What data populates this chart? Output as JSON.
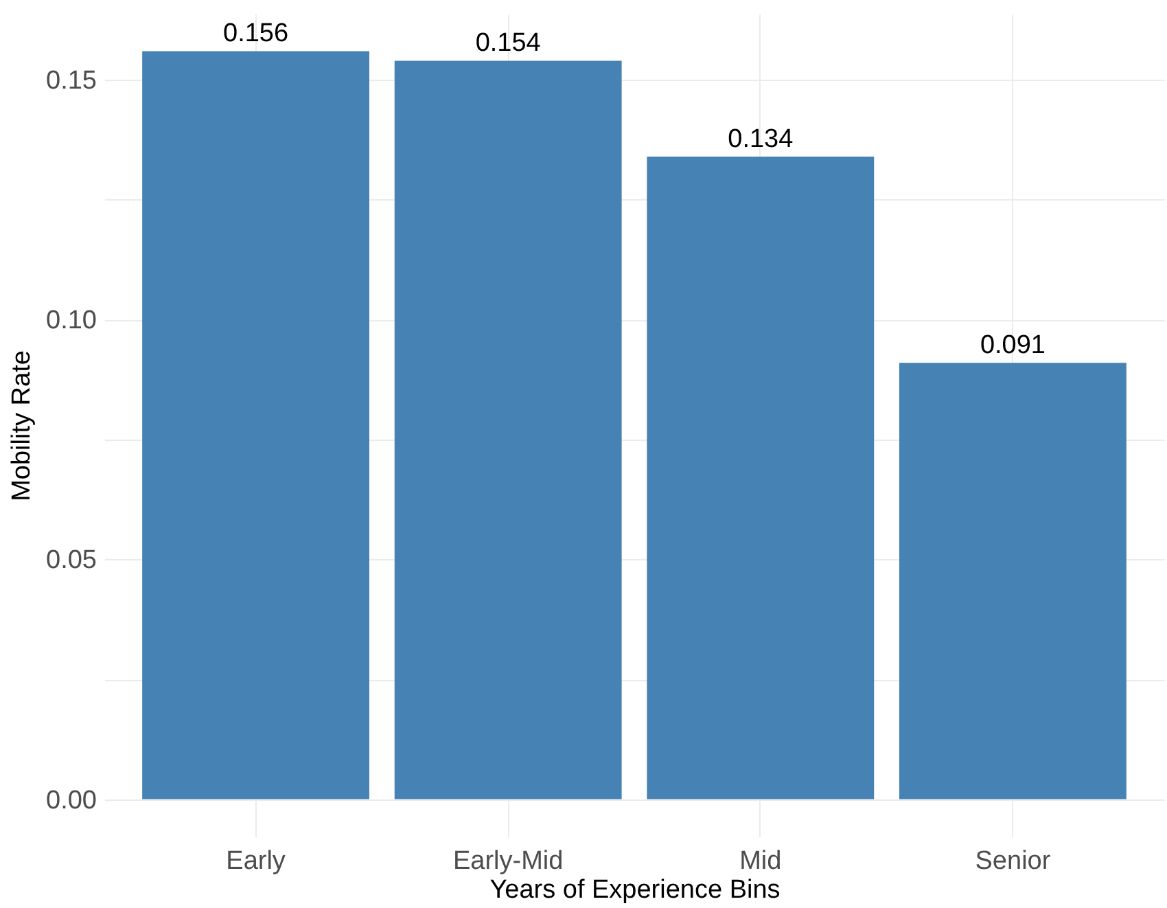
{
  "chart_data": {
    "type": "bar",
    "xlabel": "Years of Experience Bins",
    "ylabel": "Mobility Rate",
    "categories": [
      "Early",
      "Early-Mid",
      "Mid",
      "Senior"
    ],
    "values": [
      0.156,
      0.154,
      0.134,
      0.091
    ],
    "color": "#4682b4",
    "ylim": [
      -0.0078,
      0.1638
    ],
    "yticks": [
      {
        "value": 0,
        "label": "0.00"
      },
      {
        "value": 0.025,
        "label": null
      },
      {
        "value": 0.05,
        "label": "0.05"
      },
      {
        "value": 0.075,
        "label": null
      },
      {
        "value": 0.1,
        "label": "0.10"
      },
      {
        "value": 0.125,
        "label": null
      },
      {
        "value": 0.15,
        "label": "0.15"
      }
    ],
    "grid": true,
    "data_labels": true
  }
}
